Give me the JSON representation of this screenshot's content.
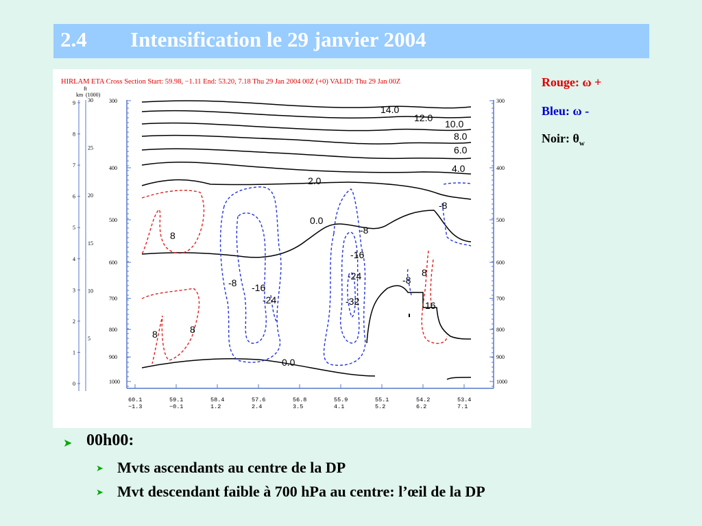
{
  "slide": {
    "title_number": "2.4",
    "title_text": "Intensification le 29 janvier 2004"
  },
  "figure": {
    "header": "HIRLAM ETA Cross Section Start:  59.98,  −1.11 End:  53.20,   7.18 Thu 29 Jan 2004 00Z  (+0) VALID: Thu 29 Jan 00Z",
    "left_axis": {
      "units_ft": "ft",
      "units_ft_scale": "(1000)",
      "units_km": "km",
      "km_ticks": [
        "9",
        "8",
        "7",
        "6",
        "5",
        "4",
        "3",
        "2",
        "1",
        "0"
      ],
      "ft_ticks": [
        "30",
        "25",
        "20",
        "15",
        "10",
        "5"
      ]
    },
    "pressure_ticks": [
      "300",
      "400",
      "500",
      "600",
      "700",
      "800",
      "900",
      "1000"
    ],
    "bottom_ticks": [
      {
        "lat": "60.1",
        "lon": "−1.3"
      },
      {
        "lat": "59.1",
        "lon": "−0.1"
      },
      {
        "lat": "58.4",
        "lon": "1.2"
      },
      {
        "lat": "57.6",
        "lon": "2.4"
      },
      {
        "lat": "56.8",
        "lon": "3.5"
      },
      {
        "lat": "55.9",
        "lon": "4.1"
      },
      {
        "lat": "55.1",
        "lon": "5.2"
      },
      {
        "lat": "54.2",
        "lon": "6.2"
      },
      {
        "lat": "53.4",
        "lon": "7.1"
      }
    ],
    "contour_labels": {
      "theta": [
        "14.0",
        "12.0",
        "10.0",
        "8.0",
        "6.0",
        "4.0",
        "2.0",
        "0.0",
        "0.0"
      ],
      "omega_pos": [
        "8",
        "8",
        "8",
        "8",
        "16"
      ],
      "omega_neg": [
        "-8",
        "-8",
        "-16",
        "-16",
        "-24",
        "-24",
        "-32",
        "-8",
        "-8"
      ]
    },
    "colors": {
      "omega_plus": "#e00000",
      "omega_minus": "#0000cc",
      "theta": "#000000"
    }
  },
  "legend": {
    "red_label": "Rouge: ",
    "red_symbol": "ω",
    "red_sign": " +",
    "blue_label": "Bleu: ",
    "blue_symbol": "ω",
    "blue_sign": " -",
    "black_label": "Noir: ",
    "black_symbol": "θ",
    "black_sub": "w"
  },
  "bullets": {
    "main": "00h00:",
    "sub1": "Mvts ascendants au centre de la DP",
    "sub2": "Mvt descendant faible à 700 hPa au centre: l’œil de la DP"
  }
}
